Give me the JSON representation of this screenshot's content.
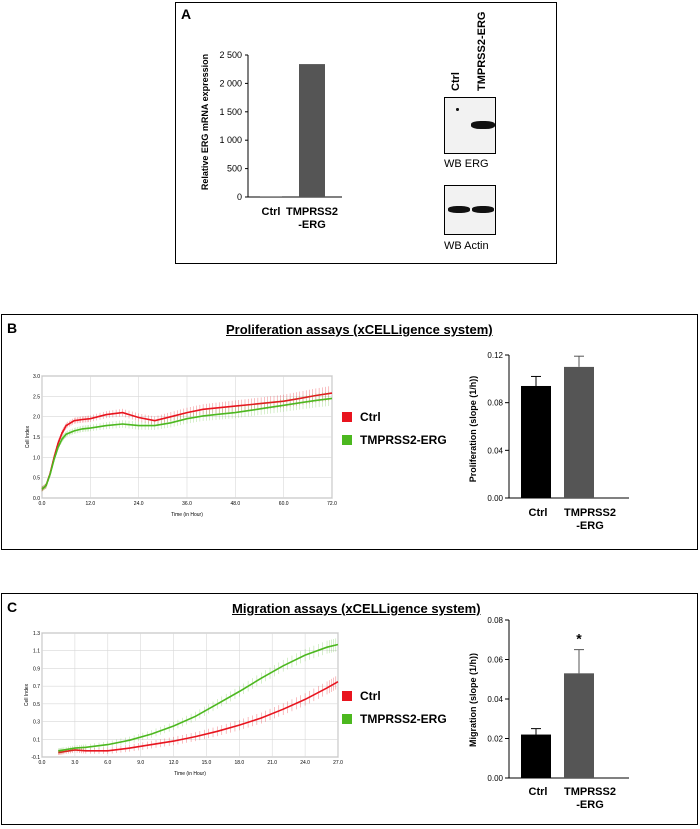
{
  "panelA": {
    "letter": "A",
    "bar_chart": {
      "ylabel": "Relative ERG mRNA expression",
      "ticks": [
        "0",
        "500",
        "1 000",
        "1 500",
        "2 000",
        "2 500"
      ],
      "cat1": "Ctrl",
      "cat2_line1": "TMPRSS2",
      "cat2_line2": "-ERG"
    },
    "western": {
      "lane1": "Ctrl",
      "lane2": "TMPRSS2-ERG",
      "blot1_label": "WB ERG",
      "blot2_label": "WB Actin"
    }
  },
  "panelB": {
    "letter": "B",
    "title": "Proliferation assays (xCELLigence system)",
    "curve": {
      "ylabel": "Cell Index",
      "xlabel": "Time (in Hour)",
      "yticks": [
        "0.0",
        "0.5",
        "1.0",
        "1.5",
        "2.0",
        "2.5",
        "3.0"
      ],
      "xticks": [
        "0.0",
        "12.0",
        "24.0",
        "36.0",
        "48.0",
        "60.0",
        "72.0"
      ]
    },
    "legend": {
      "ctrl": "Ctrl",
      "erg": "TMPRSS2-ERG"
    },
    "bar": {
      "ylabel": "Proliferation (slope (1/h))",
      "ticks": [
        "0.00",
        "0.04",
        "0.08",
        "0.12"
      ],
      "cat1": "Ctrl",
      "cat2_line1": "TMPRSS2",
      "cat2_line2": "-ERG"
    }
  },
  "panelC": {
    "letter": "C",
    "title": "Migration assays (xCELLigence system)",
    "curve": {
      "ylabel": "Cell Index",
      "xlabel": "Time (in Hour)",
      "yticks": [
        "-0.1",
        "0.1",
        "0.3",
        "0.5",
        "0.7",
        "0.9",
        "1.1",
        "1.3"
      ],
      "xticks": [
        "0.0",
        "3.0",
        "6.0",
        "9.0",
        "12.0",
        "15.0",
        "18.0",
        "21.0",
        "24.0",
        "27.0"
      ]
    },
    "legend": {
      "ctrl": "Ctrl",
      "erg": "TMPRSS2-ERG"
    },
    "bar": {
      "ylabel": "Migration (slope (1/h))",
      "ticks": [
        "0.00",
        "0.02",
        "0.04",
        "0.06",
        "0.08"
      ],
      "cat1": "Ctrl",
      "cat2_line1": "TMPRSS2",
      "cat2_line2": "-ERG",
      "significance": "*"
    }
  },
  "chart_data": [
    {
      "type": "bar",
      "id": "A-mrna",
      "title": "",
      "ylabel": "Relative ERG mRNA expression",
      "categories": [
        "Ctrl",
        "TMPRSS2-ERG"
      ],
      "values": [
        1,
        2340
      ],
      "ylim": [
        0,
        2500
      ],
      "colors": [
        "#555555",
        "#555555"
      ]
    },
    {
      "type": "line",
      "id": "B-curve",
      "title": "Proliferation assays (xCELLigence system)",
      "xlabel": "Time (in Hour)",
      "ylabel": "Cell Index",
      "xlim": [
        0,
        72
      ],
      "ylim": [
        0,
        3
      ],
      "series": [
        {
          "name": "Ctrl",
          "color": "#e8141e",
          "x": [
            0,
            1,
            2,
            3,
            4,
            5,
            6,
            8,
            10,
            12,
            16,
            20,
            24,
            28,
            32,
            36,
            40,
            44,
            48,
            52,
            56,
            60,
            64,
            68,
            72
          ],
          "y": [
            0.22,
            0.3,
            0.6,
            1.0,
            1.35,
            1.6,
            1.78,
            1.9,
            1.93,
            1.95,
            2.05,
            2.1,
            1.98,
            1.9,
            2.0,
            2.1,
            2.18,
            2.22,
            2.26,
            2.3,
            2.34,
            2.38,
            2.45,
            2.52,
            2.58
          ]
        },
        {
          "name": "TMPRSS2-ERG",
          "color": "#4cb81f",
          "x": [
            0,
            1,
            2,
            3,
            4,
            5,
            6,
            8,
            10,
            12,
            16,
            20,
            24,
            28,
            32,
            36,
            40,
            44,
            48,
            52,
            56,
            60,
            64,
            68,
            72
          ],
          "y": [
            0.22,
            0.3,
            0.58,
            0.95,
            1.25,
            1.45,
            1.57,
            1.65,
            1.7,
            1.72,
            1.78,
            1.82,
            1.78,
            1.78,
            1.85,
            1.95,
            2.02,
            2.06,
            2.1,
            2.16,
            2.22,
            2.28,
            2.34,
            2.4,
            2.45
          ]
        }
      ]
    },
    {
      "type": "bar",
      "id": "B-bar",
      "ylabel": "Proliferation (slope (1/h))",
      "categories": [
        "Ctrl",
        "TMPRSS2-ERG"
      ],
      "values": [
        0.094,
        0.11
      ],
      "errors": [
        0.008,
        0.009
      ],
      "ylim": [
        0,
        0.12
      ],
      "colors": [
        "#000000",
        "#555555"
      ]
    },
    {
      "type": "line",
      "id": "C-curve",
      "title": "Migration assays (xCELLigence system)",
      "xlabel": "Time (in Hour)",
      "ylabel": "Cell Index",
      "xlim": [
        0,
        27
      ],
      "ylim": [
        -0.1,
        1.3
      ],
      "series": [
        {
          "name": "Ctrl",
          "color": "#e8141e",
          "x": [
            1.5,
            2,
            3,
            4,
            6,
            8,
            10,
            12,
            14,
            16,
            18,
            20,
            22,
            24,
            26,
            27
          ],
          "y": [
            -0.05,
            -0.04,
            -0.02,
            -0.03,
            -0.03,
            0.0,
            0.04,
            0.08,
            0.13,
            0.19,
            0.26,
            0.34,
            0.44,
            0.55,
            0.68,
            0.75
          ]
        },
        {
          "name": "TMPRSS2-ERG",
          "color": "#4cb81f",
          "x": [
            1.5,
            2,
            3,
            4,
            6,
            8,
            10,
            12,
            14,
            16,
            18,
            20,
            22,
            24,
            26,
            27
          ],
          "y": [
            -0.03,
            -0.02,
            0.0,
            0.01,
            0.04,
            0.09,
            0.16,
            0.25,
            0.36,
            0.5,
            0.64,
            0.79,
            0.93,
            1.05,
            1.14,
            1.17
          ]
        }
      ]
    },
    {
      "type": "bar",
      "id": "C-bar",
      "ylabel": "Migration (slope (1/h))",
      "categories": [
        "Ctrl",
        "TMPRSS2-ERG"
      ],
      "values": [
        0.022,
        0.053
      ],
      "errors": [
        0.003,
        0.012
      ],
      "ylim": [
        0,
        0.08
      ],
      "annotations": [
        "",
        "*"
      ],
      "colors": [
        "#000000",
        "#555555"
      ]
    }
  ]
}
